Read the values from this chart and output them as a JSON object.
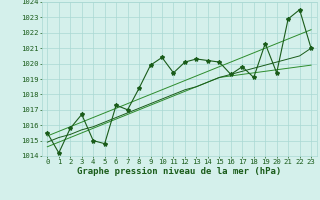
{
  "title": "Graphe pression niveau de la mer (hPa)",
  "x_labels": [
    "0",
    "1",
    "2",
    "3",
    "4",
    "5",
    "6",
    "7",
    "8",
    "9",
    "10",
    "11",
    "12",
    "13",
    "14",
    "15",
    "16",
    "17",
    "18",
    "19",
    "20",
    "21",
    "22",
    "23"
  ],
  "x_values": [
    0,
    1,
    2,
    3,
    4,
    5,
    6,
    7,
    8,
    9,
    10,
    11,
    12,
    13,
    14,
    15,
    16,
    17,
    18,
    19,
    20,
    21,
    22,
    23
  ],
  "y_main": [
    1015.5,
    1014.2,
    1015.8,
    1016.7,
    1015.0,
    1014.8,
    1017.3,
    1017.0,
    1018.4,
    1019.9,
    1020.4,
    1019.4,
    1020.1,
    1020.3,
    1020.2,
    1020.1,
    1019.3,
    1019.8,
    1019.1,
    1021.3,
    1019.4,
    1022.9,
    1023.5,
    1021.0
  ],
  "y_trend_upper": [
    1015.3,
    1015.6,
    1015.9,
    1016.2,
    1016.5,
    1016.8,
    1017.1,
    1017.4,
    1017.7,
    1018.0,
    1018.3,
    1018.6,
    1018.9,
    1019.2,
    1019.5,
    1019.8,
    1020.1,
    1020.4,
    1020.7,
    1021.0,
    1021.3,
    1021.6,
    1021.9,
    1022.2
  ],
  "y_trend_lower": [
    1014.6,
    1014.9,
    1015.2,
    1015.5,
    1015.8,
    1016.1,
    1016.4,
    1016.7,
    1017.0,
    1017.3,
    1017.6,
    1017.9,
    1018.2,
    1018.5,
    1018.8,
    1019.1,
    1019.2,
    1019.3,
    1019.4,
    1019.5,
    1019.6,
    1019.7,
    1019.8,
    1019.9
  ],
  "y_trend_mid": [
    1014.9,
    1015.2,
    1015.4,
    1015.7,
    1015.9,
    1016.2,
    1016.5,
    1016.8,
    1017.1,
    1017.4,
    1017.7,
    1018.0,
    1018.3,
    1018.5,
    1018.8,
    1019.1,
    1019.3,
    1019.5,
    1019.7,
    1019.9,
    1020.1,
    1020.3,
    1020.5,
    1021.0
  ],
  "ylim": [
    1014,
    1024
  ],
  "yticks": [
    1014,
    1015,
    1016,
    1017,
    1018,
    1019,
    1020,
    1021,
    1022,
    1023,
    1024
  ],
  "main_color": "#1a5c1a",
  "line_color": "#2d8c2d",
  "bg_color": "#d4f0eb",
  "grid_color": "#aad8d3",
  "title_fontsize": 6.5,
  "tick_fontsize": 5.2
}
